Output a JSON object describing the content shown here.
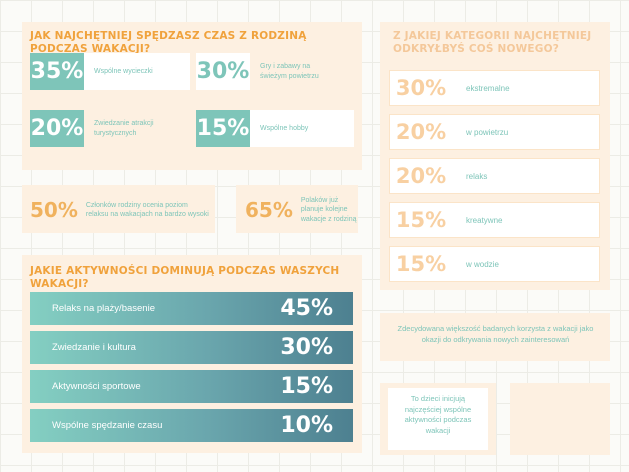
{
  "family_section": {
    "title": "JAK NAJCHĘTNIEJ SPĘDZASZ CZAS Z RODZINĄ PODCZAS WAKACJI?",
    "items": [
      {
        "value": "35%",
        "label": "Wspólne wycieczki"
      },
      {
        "value": "30%",
        "label": "Gry i zabawy na świeżym powietrzu"
      },
      {
        "value": "20%",
        "label": "Zwiedzanie atrakcji turystycznych"
      },
      {
        "value": "15%",
        "label": "Wspólne hobby"
      }
    ]
  },
  "facts": [
    {
      "value": "50%",
      "label": "Członków rodziny ocenia poziom relaksu na wakacjach na bardzo wysoki"
    },
    {
      "value": "65%",
      "label": "Polaków już planuje kolejne wakacje z rodziną"
    }
  ],
  "activities_section": {
    "title": "JAKIE AKTYWNOŚCI DOMINUJĄ PODCZAS WASZYCH WAKACJI?",
    "items": [
      {
        "label": "Relaks na plaży/basenie",
        "value": "45%"
      },
      {
        "label": "Zwiedzanie i kultura",
        "value": "30%"
      },
      {
        "label": "Aktywności sportowe",
        "value": "15%"
      },
      {
        "label": "Wspólne spędzanie czasu",
        "value": "10%"
      }
    ]
  },
  "category_section": {
    "title": "Z JAKIEJ KATEGORII NAJCHĘTNIEJ ODKRYŁBYŚ COŚ NOWEGO?",
    "items": [
      {
        "value": "30%",
        "label": "ekstremalne"
      },
      {
        "value": "20%",
        "label": "w powietrzu"
      },
      {
        "value": "20%",
        "label": "relaks"
      },
      {
        "value": "15%",
        "label": "kreatywne"
      },
      {
        "value": "15%",
        "label": "w wodzie"
      }
    ]
  },
  "notes": {
    "majority": "Zdecydowana większość badanych korzysta z wakacji jako okazji do odkrywania nowych zainteresowań",
    "children": "To dzieci inicjują najczęściej wspólne aktywności podczas wakacji"
  },
  "colors": {
    "teal": "#7ec5b9",
    "orange": "#f0a23c",
    "peach": "#fdf0e1"
  }
}
